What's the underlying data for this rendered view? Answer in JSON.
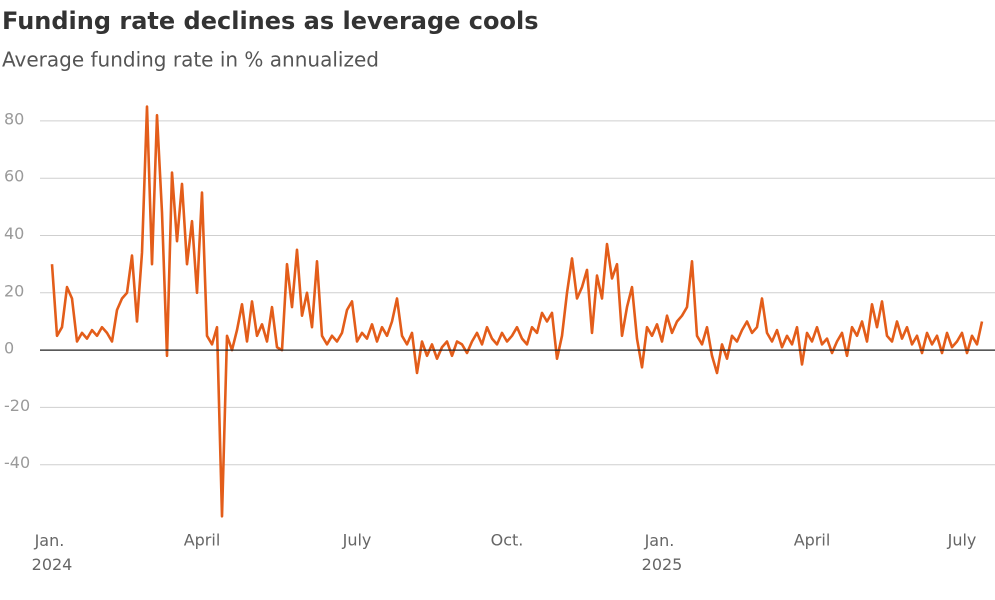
{
  "chart_data": {
    "type": "line",
    "title": "Funding rate declines as leverage cools",
    "subtitle": "Average funding rate in % annualized",
    "color": "#e35d1a",
    "categories": [
      "Jan. 2024",
      null,
      null,
      null,
      null,
      null,
      null,
      null,
      null,
      null,
      null,
      null,
      null,
      null,
      null,
      null,
      null,
      null,
      null,
      null,
      null,
      null,
      null,
      null,
      null,
      null,
      null,
      null,
      null,
      null,
      "April",
      null,
      null,
      null,
      null,
      null,
      null,
      null,
      null,
      null,
      null,
      null,
      null,
      null,
      null,
      null,
      null,
      null,
      null,
      null,
      null,
      null,
      null,
      null,
      null,
      null,
      null,
      null,
      null,
      null,
      null,
      "July",
      null,
      null,
      null,
      null,
      null,
      null,
      null,
      null,
      null,
      null,
      null,
      null,
      null,
      null,
      null,
      null,
      null,
      null,
      null,
      null,
      null,
      null,
      null,
      null,
      null,
      null,
      null,
      null,
      null,
      "Oct.",
      null,
      null,
      null,
      null,
      null,
      null,
      null,
      null,
      null,
      null,
      null,
      null,
      null,
      null,
      null,
      null,
      null,
      null,
      null,
      null,
      null,
      null,
      null,
      null,
      null,
      null,
      null,
      null,
      null,
      null,
      "Jan. 2025",
      null,
      null,
      null,
      null,
      null,
      null,
      null,
      null,
      null,
      null,
      null,
      null,
      null,
      null,
      null,
      null,
      null,
      null,
      null,
      null,
      null,
      null,
      null,
      null,
      null,
      null,
      null,
      null,
      null,
      "April",
      null,
      null,
      null,
      null,
      null,
      null,
      null,
      null,
      null,
      null,
      null,
      null,
      null,
      null,
      null,
      null,
      null,
      null,
      null,
      null,
      null,
      null,
      null,
      null,
      null,
      null,
      null,
      null,
      null,
      "July",
      null,
      null,
      null,
      null
    ],
    "values": [
      30,
      5,
      8,
      22,
      18,
      3,
      6,
      4,
      7,
      5,
      8,
      6,
      3,
      14,
      18,
      20,
      33,
      10,
      34,
      85,
      30,
      82,
      48,
      -2,
      62,
      38,
      58,
      30,
      45,
      20,
      55,
      5,
      2,
      8,
      -58,
      5,
      0,
      7,
      16,
      3,
      17,
      5,
      9,
      3,
      15,
      1,
      0,
      30,
      15,
      35,
      12,
      20,
      8,
      31,
      5,
      2,
      5,
      3,
      6,
      14,
      17,
      3,
      6,
      4,
      9,
      3,
      8,
      5,
      10,
      18,
      5,
      2,
      6,
      -8,
      3,
      -2,
      2,
      -3,
      1,
      3,
      -2,
      3,
      2,
      -1,
      3,
      6,
      2,
      8,
      4,
      2,
      6,
      3,
      5,
      8,
      4,
      2,
      8,
      6,
      13,
      10,
      13,
      -3,
      5,
      20,
      32,
      18,
      22,
      28,
      6,
      26,
      18,
      37,
      25,
      30,
      5,
      15,
      22,
      4,
      -6,
      8,
      5,
      9,
      3,
      12,
      6,
      10,
      12,
      15,
      31,
      5,
      2,
      8,
      -2,
      -8,
      2,
      -3,
      5,
      3,
      7,
      10,
      6,
      8,
      18,
      6,
      3,
      7,
      1,
      5,
      2,
      8,
      -5,
      6,
      3,
      8,
      2,
      4,
      -1,
      3,
      6,
      -2,
      8,
      5,
      10,
      3,
      16,
      8,
      17,
      5,
      3,
      10,
      4,
      8,
      2,
      5,
      -1,
      6,
      2,
      5,
      -1,
      6,
      1,
      3,
      6,
      -1,
      5,
      2,
      10
    ],
    "ylim": [
      -60,
      88
    ],
    "yticks": [
      -40,
      -20,
      0,
      20,
      40,
      60,
      80
    ],
    "grid": true
  }
}
